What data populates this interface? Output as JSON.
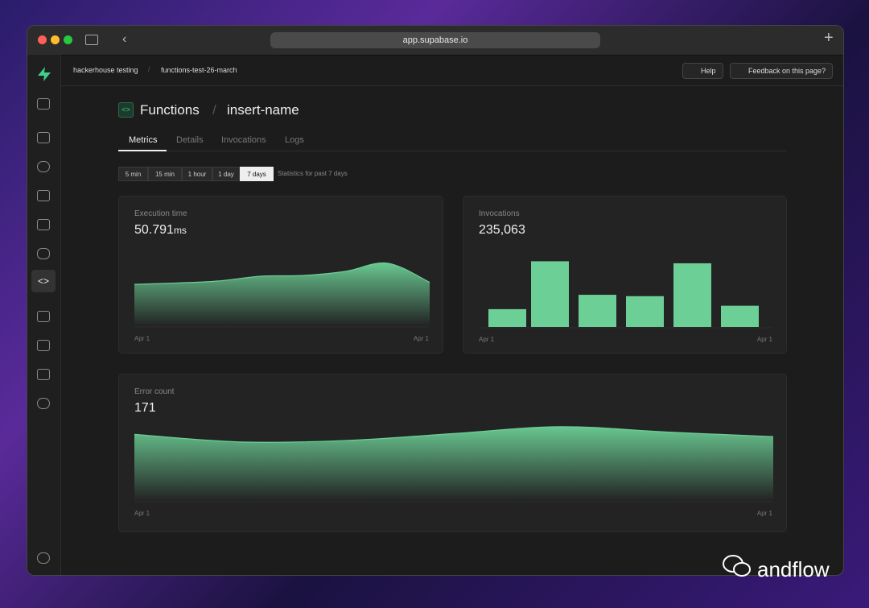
{
  "browser": {
    "url": "app.supabase.io"
  },
  "breadcrumbs": [
    "hackerhouse testing",
    "functions-test-26-march"
  ],
  "top_buttons": [
    "Help",
    "Feedback on this page?"
  ],
  "header": {
    "section": "Functions",
    "name": "insert-name"
  },
  "tabs": [
    "Metrics",
    "Details",
    "Invocations",
    "Logs"
  ],
  "active_tab": 0,
  "ranges": [
    "5 min",
    "15 min",
    "1 hour",
    "1 day",
    "7 days"
  ],
  "active_range": 4,
  "range_note": "Statistics for past 7 days",
  "chart_data": [
    {
      "type": "area",
      "title": "Execution time",
      "headline": "50.791",
      "headline_unit": "ms",
      "color": "#6ccf96",
      "categories": [
        "Apr 1",
        null,
        null,
        null,
        null,
        null,
        null,
        "Apr 1"
      ],
      "values": [
        61,
        63,
        66,
        73,
        74,
        80,
        92,
        64
      ],
      "ylim": [
        0,
        100
      ]
    },
    {
      "type": "bar",
      "title": "Invocations",
      "headline": "235,063",
      "color": "#6ccf96",
      "categories": [
        "Apr 1",
        null,
        null,
        null,
        null,
        "Apr 1"
      ],
      "values": [
        26,
        96,
        47,
        45,
        93,
        31
      ],
      "ylim": [
        0,
        100
      ]
    },
    {
      "type": "area",
      "title": "Error count",
      "headline": "171",
      "color": "#6ccf96",
      "categories": [
        "Apr 1",
        null,
        null,
        null,
        null,
        null,
        "Apr 1"
      ],
      "values": [
        87,
        77,
        79,
        88,
        97,
        90,
        84
      ],
      "ylim": [
        0,
        100
      ]
    }
  ],
  "watermark": "andflow"
}
